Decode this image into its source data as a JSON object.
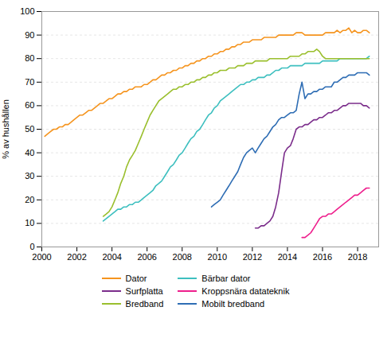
{
  "chart_data": {
    "type": "line",
    "ylabel": "% av hushållen",
    "xlim": [
      2000,
      2019.2
    ],
    "ylim": [
      0,
      100
    ],
    "xticks": [
      2000,
      2002,
      2004,
      2006,
      2008,
      2010,
      2012,
      2014,
      2016,
      2018
    ],
    "yticks": [
      0,
      10,
      20,
      30,
      40,
      50,
      60,
      70,
      80,
      90,
      100
    ],
    "grid": true,
    "legend": "bottom",
    "series": [
      {
        "name": "Dator",
        "color": "#F5941E",
        "x": [
          2000.17,
          2000.33,
          2000.5,
          2000.67,
          2000.83,
          2001.0,
          2001.17,
          2001.33,
          2001.5,
          2001.67,
          2001.83,
          2002.0,
          2002.17,
          2002.33,
          2002.5,
          2002.67,
          2002.83,
          2003.0,
          2003.17,
          2003.33,
          2003.5,
          2003.67,
          2003.83,
          2004.0,
          2004.17,
          2004.33,
          2004.5,
          2004.67,
          2004.83,
          2005.0,
          2005.17,
          2005.33,
          2005.5,
          2005.67,
          2005.83,
          2006.0,
          2006.17,
          2006.33,
          2006.5,
          2006.67,
          2006.83,
          2007.0,
          2007.17,
          2007.33,
          2007.5,
          2007.67,
          2007.83,
          2008.0,
          2008.17,
          2008.33,
          2008.5,
          2008.67,
          2008.83,
          2009.0,
          2009.17,
          2009.33,
          2009.5,
          2009.67,
          2009.83,
          2010.0,
          2010.17,
          2010.33,
          2010.5,
          2010.67,
          2010.83,
          2011.0,
          2011.17,
          2011.33,
          2011.5,
          2011.67,
          2011.83,
          2012.0,
          2012.17,
          2012.33,
          2012.5,
          2012.67,
          2012.83,
          2013.0,
          2013.17,
          2013.33,
          2013.5,
          2013.67,
          2013.83,
          2014.0,
          2014.17,
          2014.33,
          2014.5,
          2014.67,
          2014.83,
          2015.0,
          2015.17,
          2015.33,
          2015.5,
          2015.67,
          2015.83,
          2016.0,
          2016.17,
          2016.33,
          2016.5,
          2016.67,
          2016.83,
          2017.0,
          2017.17,
          2017.33,
          2017.5,
          2017.67,
          2017.83,
          2018.0,
          2018.17,
          2018.33,
          2018.5,
          2018.67
        ],
        "values": [
          47,
          48,
          49,
          50,
          50,
          51,
          51,
          52,
          52,
          53,
          54,
          55,
          56,
          56,
          57,
          58,
          58,
          59,
          60,
          61,
          61,
          62,
          63,
          63,
          64,
          65,
          65,
          66,
          66,
          67,
          67,
          68,
          68,
          68,
          69,
          69,
          70,
          71,
          71,
          72,
          73,
          73,
          74,
          74,
          75,
          75,
          76,
          76,
          77,
          77,
          78,
          78,
          79,
          79,
          80,
          80,
          81,
          81,
          82,
          82,
          83,
          83,
          84,
          84,
          85,
          85,
          86,
          86,
          87,
          87,
          87,
          88,
          88,
          88,
          88,
          89,
          89,
          89,
          89,
          89,
          90,
          90,
          90,
          90,
          90,
          90,
          91,
          91,
          91,
          90,
          90,
          90,
          90,
          90,
          90,
          90,
          91,
          91,
          91,
          91,
          92,
          91,
          92,
          92,
          93,
          91,
          92,
          91,
          91,
          92,
          92,
          91
        ]
      },
      {
        "name": "Bärbar dator",
        "color": "#3DBFBF",
        "x": [
          2003.5,
          2003.67,
          2003.83,
          2004.0,
          2004.17,
          2004.33,
          2004.5,
          2004.67,
          2004.83,
          2005.0,
          2005.17,
          2005.33,
          2005.5,
          2005.67,
          2005.83,
          2006.0,
          2006.17,
          2006.33,
          2006.5,
          2006.67,
          2006.83,
          2007.0,
          2007.17,
          2007.33,
          2007.5,
          2007.67,
          2007.83,
          2008.0,
          2008.17,
          2008.33,
          2008.5,
          2008.67,
          2008.83,
          2009.0,
          2009.17,
          2009.33,
          2009.5,
          2009.67,
          2009.83,
          2010.0,
          2010.17,
          2010.33,
          2010.5,
          2010.67,
          2010.83,
          2011.0,
          2011.17,
          2011.33,
          2011.5,
          2011.67,
          2011.83,
          2012.0,
          2012.17,
          2012.33,
          2012.5,
          2012.67,
          2012.83,
          2013.0,
          2013.17,
          2013.33,
          2013.5,
          2013.67,
          2013.83,
          2014.0,
          2014.17,
          2014.33,
          2014.5,
          2014.67,
          2014.83,
          2015.0,
          2015.17,
          2015.33,
          2015.5,
          2015.67,
          2015.83,
          2016.0,
          2016.17,
          2016.33,
          2016.5,
          2016.67,
          2016.83,
          2017.0,
          2017.17,
          2017.33,
          2017.5,
          2017.67,
          2017.83,
          2018.0,
          2018.17,
          2018.33,
          2018.5,
          2018.67
        ],
        "values": [
          11,
          12,
          13,
          14,
          15,
          16,
          16,
          17,
          17,
          18,
          18,
          19,
          19,
          20,
          21,
          22,
          23,
          24,
          26,
          27,
          28,
          30,
          32,
          34,
          35,
          37,
          39,
          40,
          42,
          44,
          46,
          47,
          49,
          50,
          52,
          54,
          56,
          57,
          59,
          60,
          62,
          63,
          64,
          65,
          66,
          67,
          68,
          69,
          69,
          70,
          70,
          71,
          71,
          72,
          72,
          72,
          73,
          73,
          74,
          75,
          75,
          76,
          76,
          76,
          77,
          77,
          77,
          77,
          77,
          78,
          78,
          78,
          78,
          78,
          78,
          79,
          79,
          79,
          79,
          79,
          79,
          80,
          80,
          80,
          80,
          80,
          80,
          80,
          80,
          80,
          80,
          81
        ]
      },
      {
        "name": "Surfplatta",
        "color": "#7B2D8B",
        "x": [
          2012.17,
          2012.33,
          2012.5,
          2012.67,
          2012.83,
          2013.0,
          2013.17,
          2013.33,
          2013.5,
          2013.67,
          2013.83,
          2014.0,
          2014.17,
          2014.33,
          2014.5,
          2014.67,
          2014.83,
          2015.0,
          2015.17,
          2015.33,
          2015.5,
          2015.67,
          2015.83,
          2016.0,
          2016.17,
          2016.33,
          2016.5,
          2016.67,
          2016.83,
          2017.0,
          2017.17,
          2017.33,
          2017.5,
          2017.67,
          2017.83,
          2018.0,
          2018.17,
          2018.33,
          2018.5,
          2018.67
        ],
        "values": [
          8,
          8,
          9,
          9,
          10,
          11,
          13,
          17,
          23,
          32,
          40,
          42,
          43,
          46,
          50,
          51,
          51,
          52,
          52,
          53,
          54,
          54,
          55,
          55,
          56,
          57,
          57,
          58,
          58,
          59,
          60,
          60,
          61,
          61,
          61,
          61,
          61,
          60,
          60,
          59
        ]
      },
      {
        "name": "Kroppsnära datateknik",
        "color": "#EE1E8C",
        "x": [
          2014.83,
          2015.0,
          2015.17,
          2015.33,
          2015.5,
          2015.67,
          2015.83,
          2016.0,
          2016.17,
          2016.33,
          2016.5,
          2016.67,
          2016.83,
          2017.0,
          2017.17,
          2017.33,
          2017.5,
          2017.67,
          2017.83,
          2018.0,
          2018.17,
          2018.33,
          2018.5,
          2018.67
        ],
        "values": [
          4,
          4,
          5,
          6,
          8,
          10,
          12,
          13,
          13,
          14,
          14,
          15,
          16,
          17,
          18,
          19,
          20,
          21,
          22,
          22,
          23,
          24,
          25,
          25
        ]
      },
      {
        "name": "Bredband",
        "color": "#9ABF2D",
        "x": [
          2003.5,
          2003.67,
          2003.83,
          2004.0,
          2004.17,
          2004.33,
          2004.5,
          2004.67,
          2004.83,
          2005.0,
          2005.17,
          2005.33,
          2005.5,
          2005.67,
          2005.83,
          2006.0,
          2006.17,
          2006.33,
          2006.5,
          2006.67,
          2006.83,
          2007.0,
          2007.17,
          2007.33,
          2007.5,
          2007.67,
          2007.83,
          2008.0,
          2008.17,
          2008.33,
          2008.5,
          2008.67,
          2008.83,
          2009.0,
          2009.17,
          2009.33,
          2009.5,
          2009.67,
          2009.83,
          2010.0,
          2010.17,
          2010.33,
          2010.5,
          2010.67,
          2010.83,
          2011.0,
          2011.17,
          2011.33,
          2011.5,
          2011.67,
          2011.83,
          2012.0,
          2012.17,
          2012.33,
          2012.5,
          2012.67,
          2012.83,
          2013.0,
          2013.17,
          2013.33,
          2013.5,
          2013.67,
          2013.83,
          2014.0,
          2014.17,
          2014.33,
          2014.5,
          2014.67,
          2014.83,
          2015.0,
          2015.17,
          2015.33,
          2015.5,
          2015.67,
          2015.83,
          2016.0,
          2016.17,
          2016.33,
          2016.5,
          2016.67,
          2016.83,
          2017.0,
          2017.17,
          2017.33,
          2017.5,
          2017.67,
          2017.83,
          2018.0,
          2018.17,
          2018.33,
          2018.5,
          2018.67
        ],
        "values": [
          13,
          14,
          15,
          17,
          20,
          23,
          27,
          30,
          34,
          37,
          39,
          41,
          44,
          47,
          50,
          53,
          56,
          58,
          60,
          62,
          63,
          64,
          65,
          66,
          67,
          67,
          68,
          68,
          69,
          69,
          70,
          70,
          71,
          71,
          72,
          72,
          73,
          73,
          74,
          74,
          75,
          75,
          75,
          76,
          76,
          76,
          77,
          77,
          77,
          78,
          78,
          78,
          79,
          79,
          79,
          79,
          79,
          80,
          80,
          80,
          80,
          80,
          80,
          80,
          81,
          81,
          81,
          81,
          82,
          82,
          83,
          83,
          83,
          84,
          83,
          81,
          80,
          80,
          80,
          80,
          80,
          80,
          80,
          80,
          80,
          80,
          80,
          80,
          80,
          80,
          80,
          80
        ]
      },
      {
        "name": "Mobilt bredband",
        "color": "#2E6DB4",
        "x": [
          2009.67,
          2009.83,
          2010.0,
          2010.17,
          2010.33,
          2010.5,
          2010.67,
          2010.83,
          2011.0,
          2011.17,
          2011.33,
          2011.5,
          2011.67,
          2011.83,
          2012.0,
          2012.17,
          2012.33,
          2012.5,
          2012.67,
          2012.83,
          2013.0,
          2013.17,
          2013.33,
          2013.5,
          2013.67,
          2013.83,
          2014.0,
          2014.17,
          2014.33,
          2014.5,
          2014.67,
          2014.83,
          2015.0,
          2015.17,
          2015.33,
          2015.5,
          2015.67,
          2015.83,
          2016.0,
          2016.17,
          2016.33,
          2016.5,
          2016.67,
          2016.83,
          2017.0,
          2017.17,
          2017.33,
          2017.5,
          2017.67,
          2017.83,
          2018.0,
          2018.17,
          2018.33,
          2018.5,
          2018.67
        ],
        "values": [
          17,
          18,
          19,
          20,
          22,
          24,
          26,
          28,
          30,
          32,
          35,
          38,
          40,
          41,
          42,
          40,
          42,
          44,
          46,
          47,
          49,
          51,
          52,
          54,
          55,
          55,
          56,
          57,
          57,
          58,
          65,
          70,
          63,
          65,
          65,
          66,
          66,
          67,
          67,
          68,
          68,
          68,
          70,
          70,
          71,
          72,
          72,
          73,
          73,
          73,
          74,
          74,
          74,
          74,
          73
        ]
      }
    ]
  }
}
